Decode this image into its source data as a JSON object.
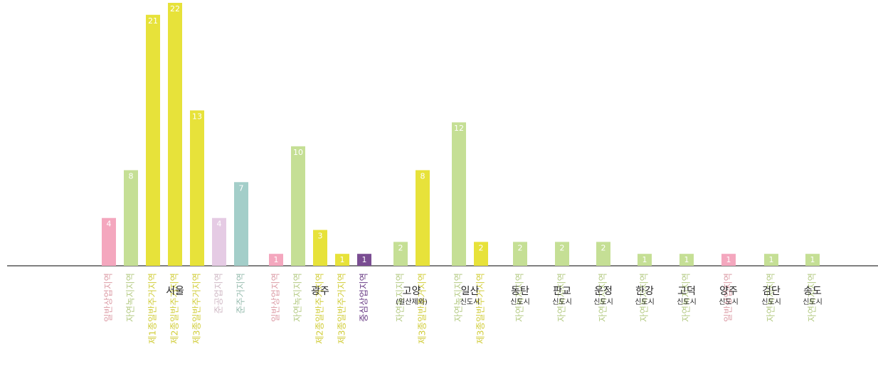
{
  "chart_data": {
    "type": "bar",
    "xlabel": "",
    "ylabel": "",
    "ylim": [
      0,
      22
    ],
    "grid": false,
    "groups": [
      {
        "name": "서울",
        "sub": "",
        "bars": [
          {
            "label": "일반상업지역",
            "value": 4,
            "color": "#f4a7be"
          },
          {
            "label": "자연녹지지역",
            "value": 8,
            "color": "#c5df95"
          },
          {
            "label": "제1종일반주거지역",
            "value": 21,
            "color": "#e7e23a"
          },
          {
            "label": "제2종일반주거지역",
            "value": 22,
            "color": "#e7e23a"
          },
          {
            "label": "제3종일반주거지역",
            "value": 13,
            "color": "#e7e23a"
          },
          {
            "label": "준공업지역",
            "value": 4,
            "color": "#e5cbe4"
          },
          {
            "label": "준주거지역",
            "value": 7,
            "color": "#a3cec9"
          }
        ]
      },
      {
        "name": "광주",
        "sub": "",
        "bars": [
          {
            "label": "일반상업지역",
            "value": 1,
            "color": "#f4a7be"
          },
          {
            "label": "자연녹지지역",
            "value": 10,
            "color": "#c5df95"
          },
          {
            "label": "제2종일반주거지역",
            "value": 3,
            "color": "#e7e23a"
          },
          {
            "label": "제3종일반주거지역",
            "value": 1,
            "color": "#e7e23a"
          },
          {
            "label": "중심상업지역",
            "value": 1,
            "color": "#7a4d92"
          }
        ]
      },
      {
        "name": "고양",
        "sub": "(일산제외)",
        "bars": [
          {
            "label": "자연녹지지역",
            "value": 2,
            "color": "#c5df95"
          },
          {
            "label": "제3종일반주거지역",
            "value": 8,
            "color": "#e7e23a"
          }
        ]
      },
      {
        "name": "일산",
        "sub": "신도시",
        "bars": [
          {
            "label": "자연녹지지역",
            "value": 12,
            "color": "#c5df95"
          },
          {
            "label": "제3종일반주거지역",
            "value": 2,
            "color": "#e7e23a"
          }
        ]
      },
      {
        "name": "동탄",
        "sub": "신도시",
        "bars": [
          {
            "label": "자연녹지지역",
            "value": 2,
            "color": "#c5df95"
          }
        ]
      },
      {
        "name": "판교",
        "sub": "신도시",
        "bars": [
          {
            "label": "자연녹지지역",
            "value": 2,
            "color": "#c5df95"
          }
        ]
      },
      {
        "name": "운정",
        "sub": "신도시",
        "bars": [
          {
            "label": "자연녹지지역",
            "value": 2,
            "color": "#c5df95"
          }
        ]
      },
      {
        "name": "한강",
        "sub": "신도시",
        "bars": [
          {
            "label": "자연녹지지역",
            "value": 1,
            "color": "#c5df95"
          }
        ]
      },
      {
        "name": "고덕",
        "sub": "신도시",
        "bars": [
          {
            "label": "자연녹지지역",
            "value": 1,
            "color": "#c5df95"
          }
        ]
      },
      {
        "name": "양주",
        "sub": "신도시",
        "bars": [
          {
            "label": "일반상업지역",
            "value": 1,
            "color": "#f4a7be"
          }
        ]
      },
      {
        "name": "검단",
        "sub": "신도시",
        "bars": [
          {
            "label": "자연녹지지역",
            "value": 1,
            "color": "#c5df95"
          }
        ]
      },
      {
        "name": "송도",
        "sub": "신도시",
        "bars": [
          {
            "label": "자연녹지지역",
            "value": 1,
            "color": "#c5df95"
          }
        ]
      }
    ]
  }
}
